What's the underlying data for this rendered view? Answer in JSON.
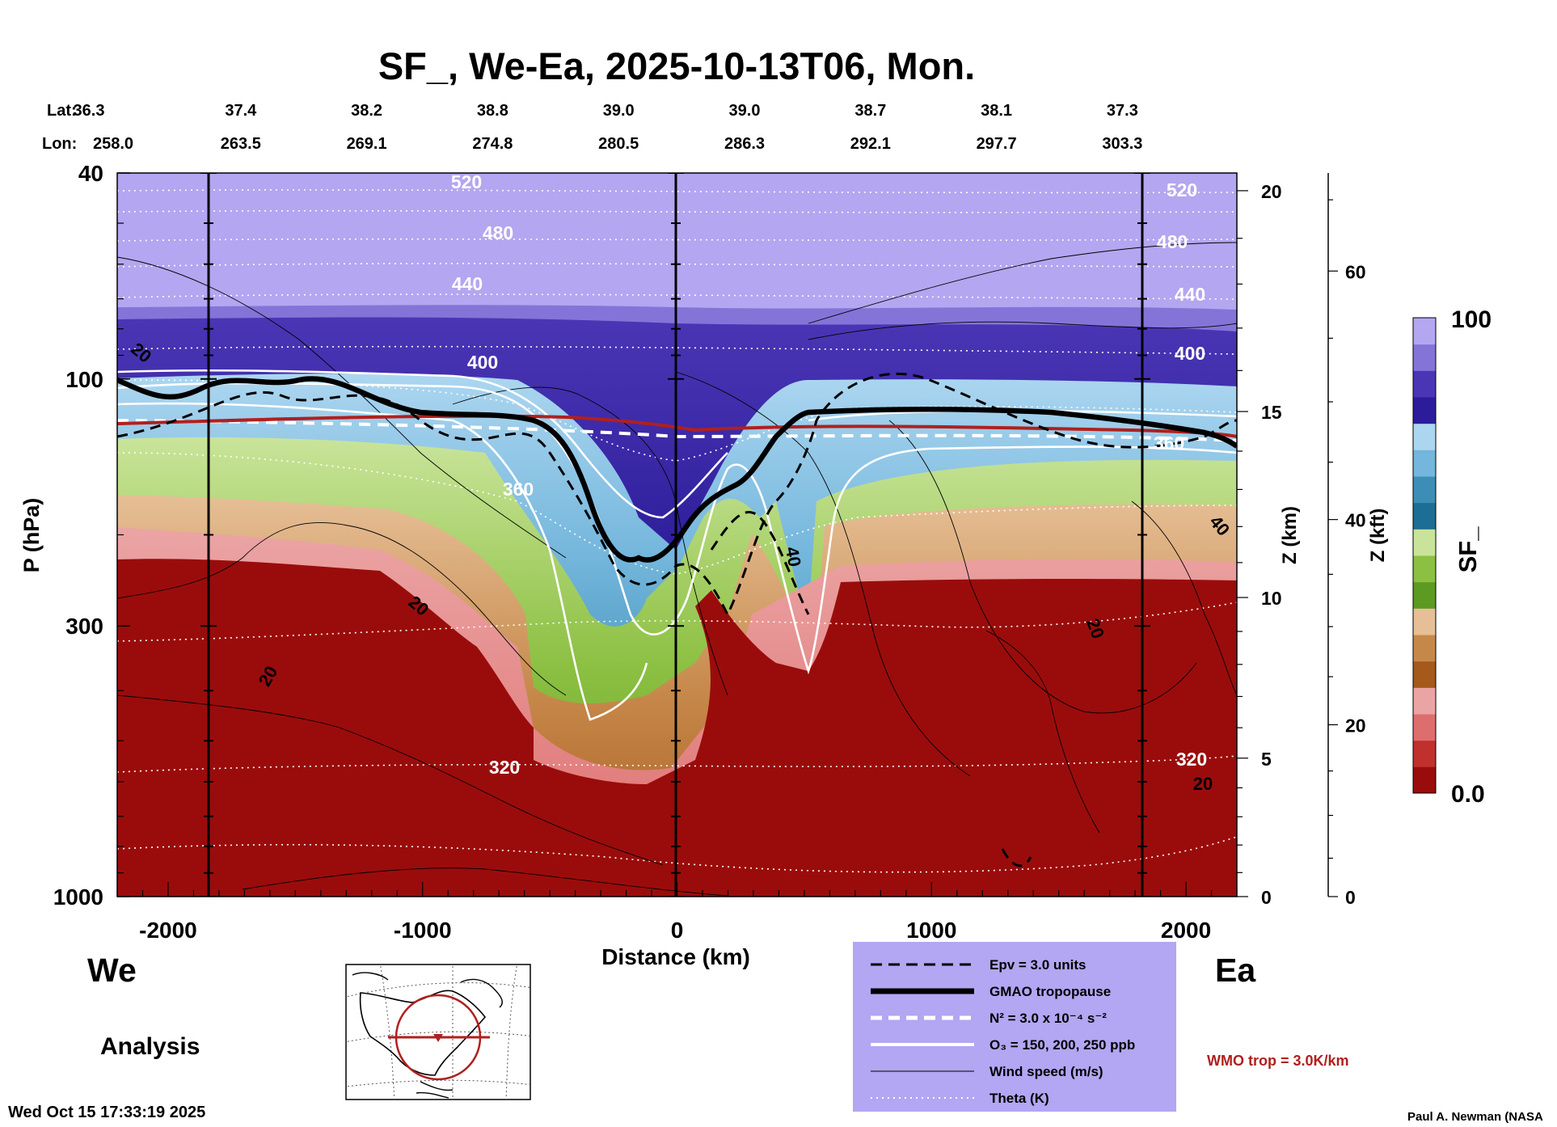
{
  "chart_data": {
    "type": "heatmap",
    "title": "SF_, We-Ea, 2025-10-13T06, Mon.",
    "xlabel": "Distance (km)",
    "ylabel": "P (hPa)",
    "y2label": "Z (km)",
    "y3label": "Z (kft)",
    "xlim": [
      -2200,
      2200
    ],
    "ylim": [
      1000,
      40
    ],
    "yscale": "log",
    "xticks": [
      -2000,
      -1000,
      0,
      1000,
      2000
    ],
    "yticks": [
      40,
      100,
      300,
      1000
    ],
    "zkm_ticks": [
      0,
      5,
      10,
      15,
      20
    ],
    "zkft_ticks": [
      0,
      20,
      40,
      60
    ],
    "lat_label": "Lat:",
    "lon_label": "Lon:",
    "lat": [
      "36.3",
      "37.4",
      "38.2",
      "38.8",
      "39.0",
      "39.0",
      "38.7",
      "38.1",
      "37.3"
    ],
    "lon": [
      "258.0",
      "263.5",
      "269.1",
      "274.8",
      "280.5",
      "286.3",
      "292.1",
      "297.7",
      "303.3"
    ],
    "west_label": "We",
    "east_label": "Ea",
    "colorbar": {
      "label": "SF_",
      "max_label": "100",
      "min_label": "0.0",
      "colors": [
        "#9a0c0c",
        "#c0302c",
        "#de6e6e",
        "#eba4a4",
        "#a55a1c",
        "#c6884a",
        "#e6bf96",
        "#5c9a22",
        "#8cc042",
        "#c9e49a",
        "#1c6e94",
        "#3c8eb6",
        "#74b6dc",
        "#acd6f0",
        "#2c1c9a",
        "#4a36b4",
        "#8474d8",
        "#b4a6f0"
      ]
    },
    "theta_labels": [
      "520",
      "480",
      "440",
      "400",
      "360",
      "320"
    ],
    "wind_labels": [
      "20",
      "40"
    ],
    "legend": {
      "items": [
        {
          "style": "dashed-black",
          "label": "Epv = 3.0 units"
        },
        {
          "style": "thick-black",
          "label": "GMAO tropopause"
        },
        {
          "style": "dashed-white",
          "label": "N² = 3.0 x 10⁻⁴ s⁻²"
        },
        {
          "style": "solid-white",
          "label": "O₃ = 150, 200, 250 ppb"
        },
        {
          "style": "thin-black",
          "label": "Wind speed (m/s)"
        },
        {
          "style": "dotted-white",
          "label": "Theta (K)"
        }
      ],
      "wmo_note": "WMO trop = 3.0K/km",
      "wmo_color": "#b0201e",
      "background": "#b3a6f2"
    },
    "analysis_label": "Analysis",
    "timestamp": "Wed Oct 15 17:33:19 2025",
    "credit": "Paul A. Newman (NASA"
  }
}
